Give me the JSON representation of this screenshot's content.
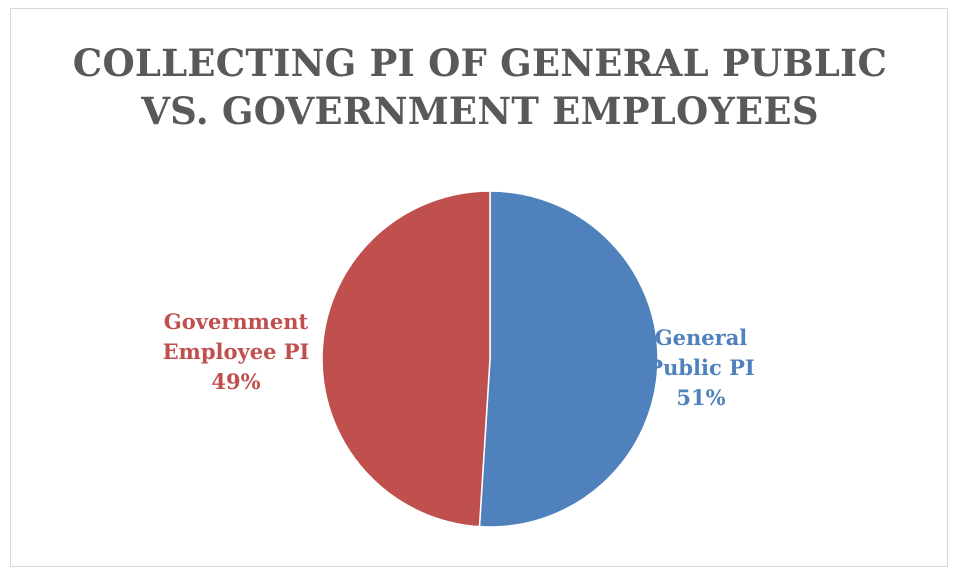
{
  "chart_data": {
    "type": "pie",
    "title_lines": [
      "COLLECTING PI OF GENERAL PUBLIC",
      "VS. GOVERNMENT EMPLOYEES"
    ],
    "slices": [
      {
        "label_lines": [
          "General",
          "Public PI"
        ],
        "value": 51,
        "value_label": "51%",
        "color": "#4f81bd"
      },
      {
        "label_lines": [
          "Government",
          "Employee PI"
        ],
        "value": 49,
        "value_label": "49%",
        "color": "#c0504d"
      }
    ],
    "start_angle_deg": 0,
    "direction": "clockwise",
    "legend": "none",
    "label_position": "outside"
  }
}
